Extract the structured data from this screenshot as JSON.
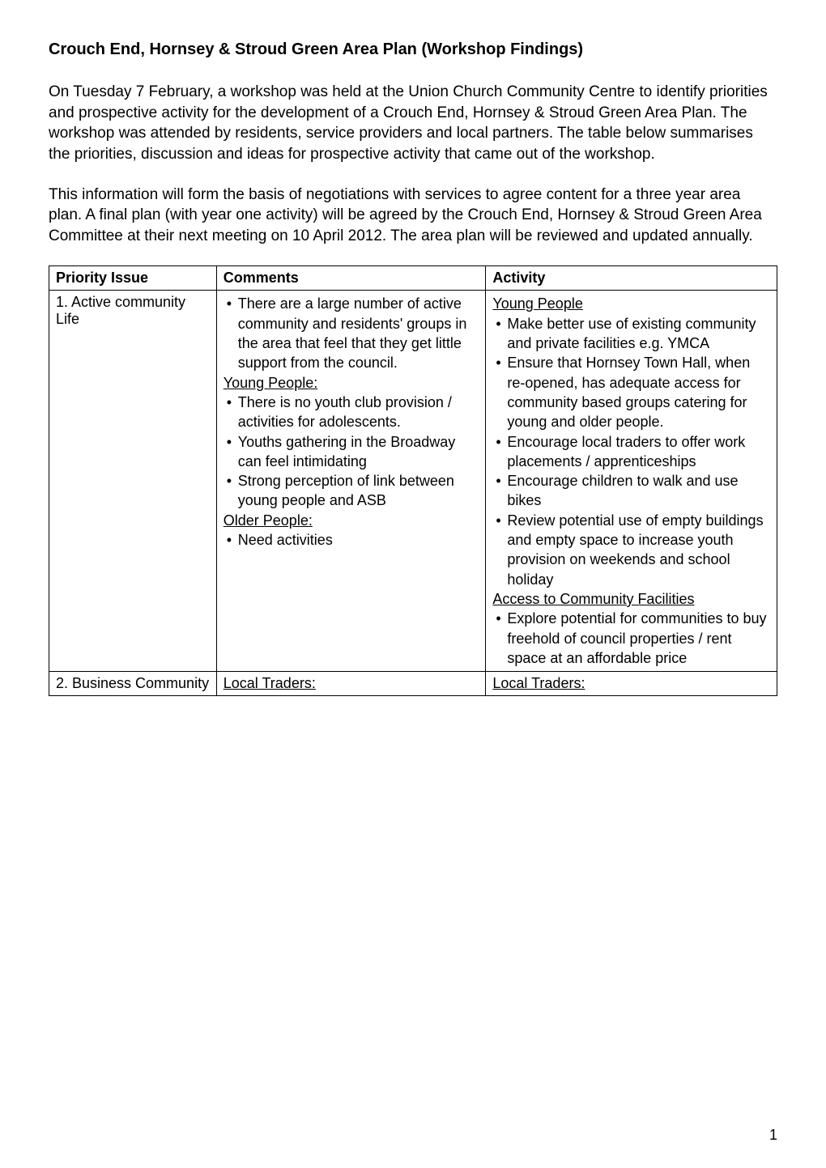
{
  "title": "Crouch End, Hornsey & Stroud Green Area Plan (Workshop Findings)",
  "para1": "On Tuesday 7 February, a workshop was held at the Union Church Community Centre to identify priorities and prospective activity for the development of a Crouch End, Hornsey & Stroud Green Area Plan. The workshop was attended by residents, service providers and local partners. The table below summarises the priorities, discussion and ideas for prospective activity that came out of the workshop.",
  "para2": "This information will form the basis of negotiations with services to agree content for a three year area plan. A final plan (with year one activity) will be agreed by the Crouch End, Hornsey & Stroud Green Area Committee at their next meeting on 10 April 2012. The area plan will be reviewed and updated annually.",
  "headers": {
    "c1": "Priority Issue",
    "c2": "Comments",
    "c3": "Activity"
  },
  "row1": {
    "issue": "1. Active community Life",
    "comments": {
      "intro_bullet": "There are a large number of active community and residents' groups in the area that feel that they get little support from the council.",
      "heading1": "Young People:",
      "yp": [
        "There is no youth club provision / activities for adolescents.",
        "Youths gathering in the Broadway can feel intimidating",
        "Strong perception of link between young people and ASB"
      ],
      "heading2": "Older People:",
      "op": [
        "Need activities"
      ]
    },
    "activity": {
      "heading1": "Young People",
      "yp": [
        "Make better use of existing community and private facilities e.g. YMCA",
        "Ensure that Hornsey Town Hall, when re-opened, has adequate access for community based groups catering for young and older people.",
        "Encourage local traders to offer work placements / apprenticeships",
        "Encourage children to walk and use bikes",
        "Review potential use of empty buildings and empty space to increase youth provision on weekends and school holiday"
      ],
      "heading2": "Access to Community Facilities",
      "acf": [
        "Explore potential for communities to buy freehold of council properties / rent space at an affordable price"
      ]
    }
  },
  "row2": {
    "issue": "2. Business Community",
    "comments": "Local Traders:",
    "activity": "Local Traders:"
  },
  "page_number": "1"
}
